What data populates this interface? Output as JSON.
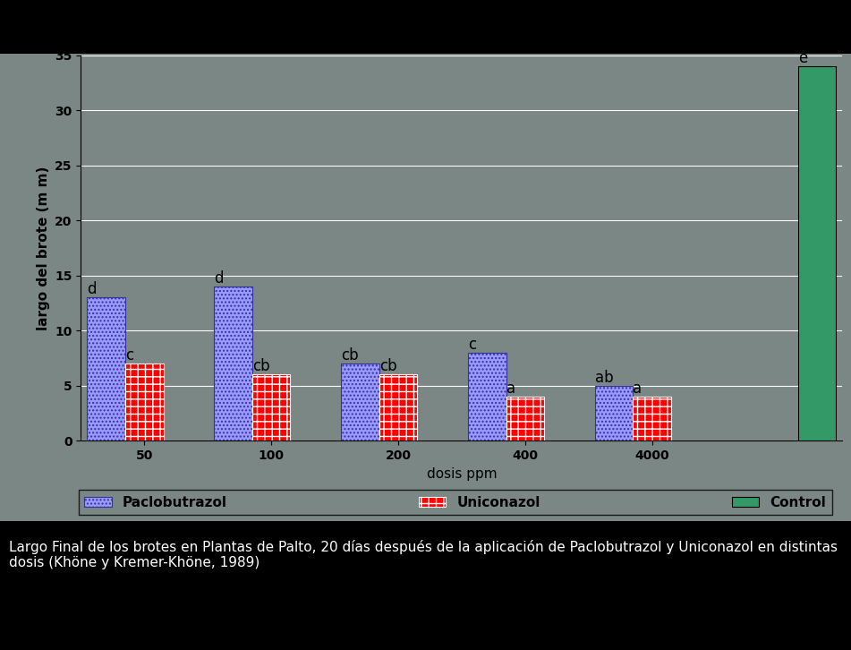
{
  "chart_data": {
    "type": "bar",
    "caption": "Largo Final de los brotes en Plantas de Palto, 20 días después de la aplicación de Paclobutrazol y Uniconazol en distintas dosis (Khöne y Kremer-Khöne, 1989)",
    "x_label": "dosis ppm",
    "y_label": "largo del brote (m m)",
    "categories": [
      "50",
      "100",
      "200",
      "400",
      "4000",
      null
    ],
    "series": [
      {
        "name": "Paclobutrazol",
        "color": "#9999ff",
        "values": [
          13,
          14,
          7,
          8,
          5,
          null
        ],
        "annotations": [
          "d",
          "d",
          "cb",
          "c",
          "ab",
          null
        ]
      },
      {
        "name": "Uniconazol",
        "color": "#ff0000",
        "values": [
          7,
          6,
          6,
          4,
          4,
          null
        ],
        "annotations": [
          "c",
          "cb",
          "cb",
          "a",
          "a",
          null
        ]
      },
      {
        "name": "Control",
        "color": "#339966",
        "values": [
          null,
          null,
          null,
          null,
          null,
          34
        ],
        "annotations": [
          null,
          null,
          null,
          null,
          null,
          "e"
        ]
      }
    ],
    "ylim": [
      0,
      35
    ],
    "yticks": [
      0,
      5,
      10,
      15,
      20,
      25,
      30,
      35
    ],
    "grid": true,
    "legend": "lower center"
  }
}
